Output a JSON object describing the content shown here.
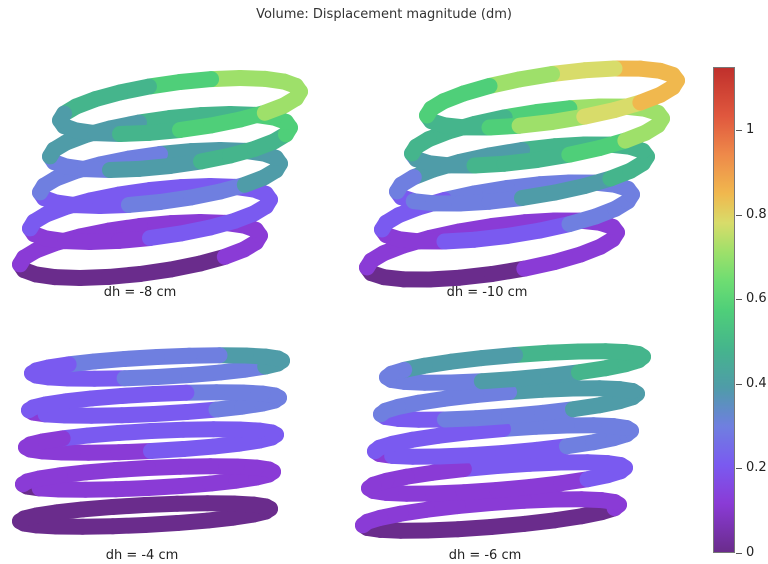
{
  "title": "Volume: Displacement magnitude (dm)",
  "chart_data": {
    "type": "heatmap",
    "title": "Volume: Displacement magnitude (dm)",
    "panels": [
      {
        "label": "dh = -8 cm",
        "max_value": 0.78
      },
      {
        "label": "dh = -10 cm",
        "max_value": 1.0
      },
      {
        "label": "dh = -4 cm",
        "max_value": 0.4
      },
      {
        "label": "dh = -6 cm",
        "max_value": 0.58
      }
    ],
    "colorbar": {
      "range": [
        0,
        1.15
      ],
      "ticks": [
        "0",
        "0.2",
        "0.4",
        "0.6",
        "0.8",
        "1"
      ],
      "tick_values": [
        0,
        0.2,
        0.4,
        0.6,
        0.8,
        1.0
      ],
      "colormap": "rainbow",
      "colors": [
        "#6a2c8c",
        "#8a3bd6",
        "#6f7fe0",
        "#4f9ca8",
        "#4fcf79",
        "#d8dc6a",
        "#ee8a4a",
        "#c0302c"
      ]
    }
  }
}
